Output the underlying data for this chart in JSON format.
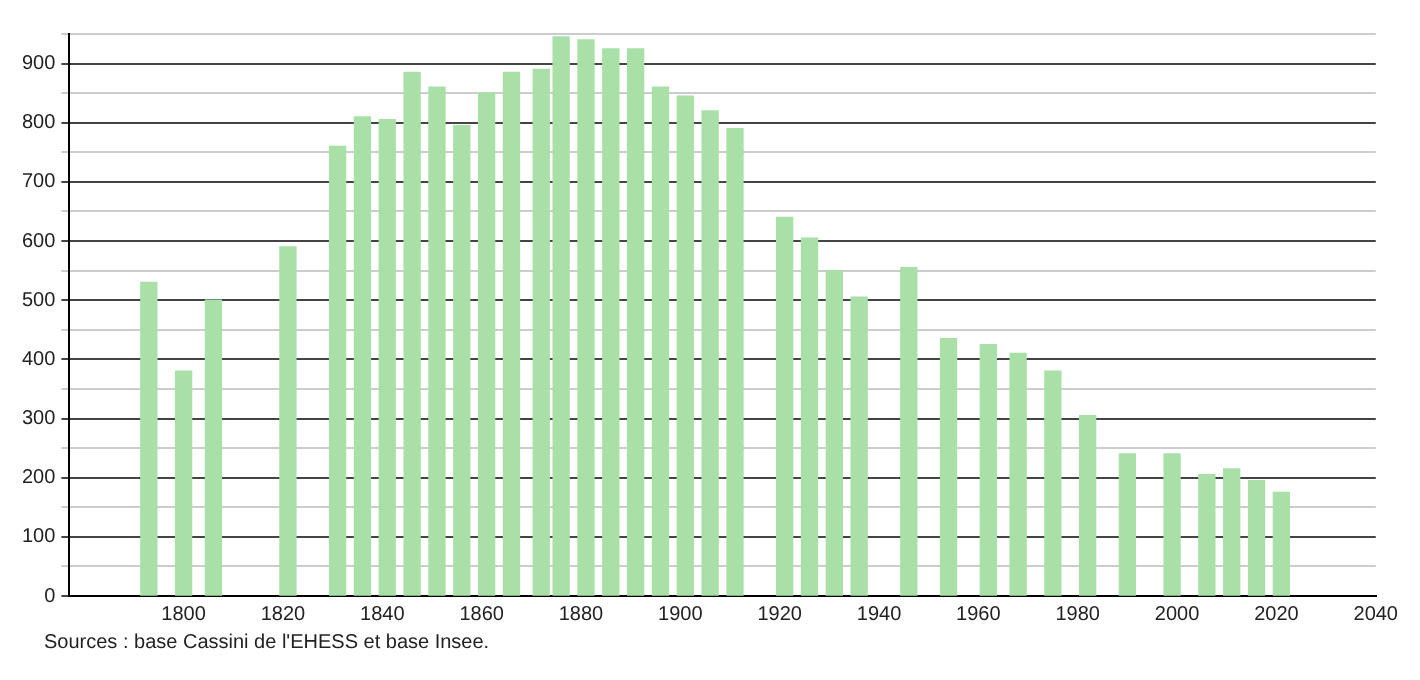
{
  "chart_data": {
    "type": "bar",
    "x": [
      1793,
      1800,
      1806,
      1821,
      1831,
      1836,
      1841,
      1846,
      1851,
      1856,
      1861,
      1866,
      1872,
      1876,
      1881,
      1886,
      1891,
      1896,
      1901,
      1906,
      1911,
      1921,
      1926,
      1931,
      1936,
      1946,
      1954,
      1962,
      1968,
      1975,
      1982,
      1990,
      1999,
      2006,
      2011,
      2016,
      2021
    ],
    "values": [
      530,
      380,
      500,
      590,
      760,
      810,
      805,
      885,
      860,
      795,
      850,
      885,
      890,
      945,
      940,
      925,
      925,
      860,
      845,
      820,
      790,
      640,
      605,
      550,
      505,
      555,
      435,
      425,
      410,
      380,
      305,
      240,
      240,
      205,
      215,
      195,
      175
    ],
    "color": "#a8e0a8",
    "xlim": [
      1777,
      2040
    ],
    "xticks": [
      1800,
      1820,
      1840,
      1860,
      1880,
      1900,
      1920,
      1940,
      1960,
      1980,
      2000,
      2020,
      2040
    ],
    "ylim": [
      0,
      950
    ],
    "yticks": [
      0,
      {
        "value": 50,
        "label": null
      },
      100,
      {
        "value": 150,
        "label": null
      },
      200,
      {
        "value": 250,
        "label": null
      },
      300,
      {
        "value": 350,
        "label": null
      },
      400,
      {
        "value": 450,
        "label": null
      },
      500,
      {
        "value": 550,
        "label": null
      },
      600,
      {
        "value": 650,
        "label": null
      },
      700,
      {
        "value": 750,
        "label": null
      },
      800,
      {
        "value": 850,
        "label": null
      },
      900,
      {
        "value": 950,
        "label": null
      }
    ],
    "grid": "y",
    "legend": false,
    "annotations": [
      "Sources : base Cassini de l'EHESS et base Insee."
    ]
  }
}
